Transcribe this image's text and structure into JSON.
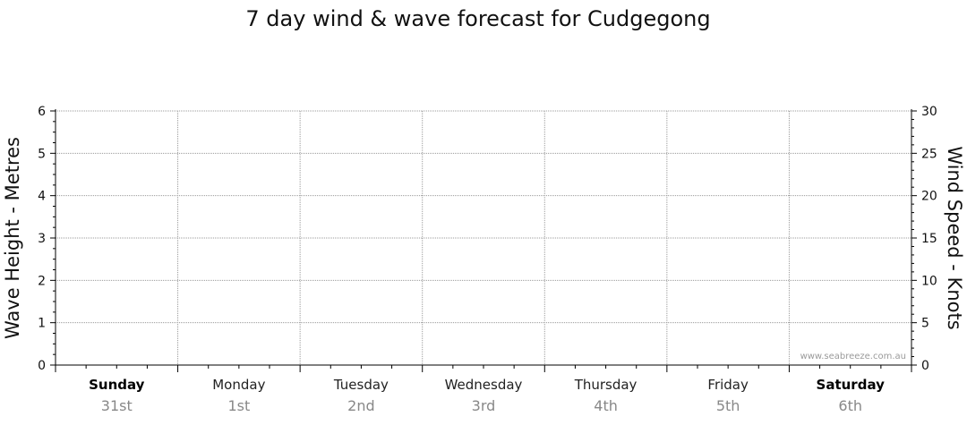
{
  "chart_data": {
    "type": "line",
    "title": "7 day wind & wave forecast for Cudgegong",
    "y_left": {
      "label": "Wave Height - Metres",
      "range": [
        0,
        6
      ],
      "ticks": [
        0,
        1,
        2,
        3,
        4,
        5,
        6
      ]
    },
    "y_right": {
      "label": "Wind Speed - Knots",
      "range": [
        0,
        30
      ],
      "ticks": [
        0,
        5,
        10,
        15,
        20,
        25,
        30
      ]
    },
    "days": [
      {
        "name": "Sunday",
        "date": "31st",
        "bold": true
      },
      {
        "name": "Monday",
        "date": "1st",
        "bold": false
      },
      {
        "name": "Tuesday",
        "date": "2nd",
        "bold": false
      },
      {
        "name": "Wednesday",
        "date": "3rd",
        "bold": false
      },
      {
        "name": "Thursday",
        "date": "4th",
        "bold": false
      },
      {
        "name": "Friday",
        "date": "5th",
        "bold": false
      },
      {
        "name": "Saturday",
        "date": "6th",
        "bold": true
      }
    ],
    "series": [],
    "grid": true,
    "watermark": "www.seabreeze.com.au"
  }
}
